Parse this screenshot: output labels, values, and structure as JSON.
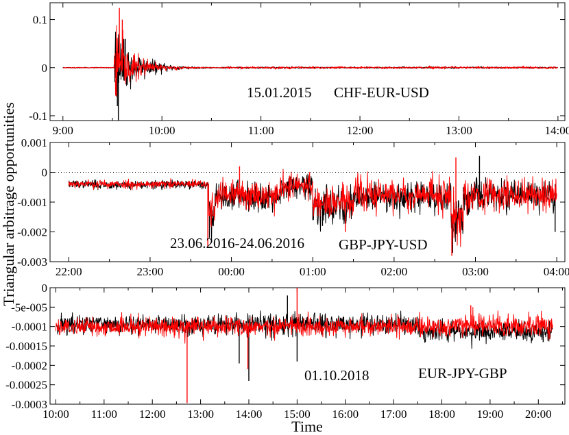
{
  "chart_data": [
    {
      "type": "line",
      "annotations": [
        "15.01.2015",
        "CHF-EUR-USD"
      ],
      "x_tick_labels": [
        "9:00",
        "10:00",
        "11:00",
        "12:00",
        "13:00",
        "14:00"
      ],
      "x_ticks_hours": [
        9,
        10,
        11,
        12,
        13,
        14
      ],
      "xlim_hours": [
        8.87,
        14.07
      ],
      "ylim": [
        -0.11,
        0.135
      ],
      "y_ticks": [
        -0.1,
        0,
        0.1
      ],
      "y_tick_labels": [
        "-0.1",
        "0",
        "0.1"
      ],
      "zero_line_dotted": false,
      "series": [
        {
          "color": "#000000",
          "seed": 11,
          "segments": [
            {
              "x0": 9.0,
              "x1": 9.52,
              "base": 0,
              "noise": 0.0004
            },
            {
              "x0": 9.52,
              "x1": 10.6,
              "base": 0,
              "noise": 0.0004,
              "burst_amp": 0.075,
              "burst_decay": 0.22,
              "burst_start": 9.52
            },
            {
              "x0": 10.6,
              "x1": 14.0,
              "base": 0,
              "noise": 0.0008
            }
          ],
          "spikes": [
            {
              "x": 9.56,
              "y": -0.11
            },
            {
              "x": 9.63,
              "y": 0.06
            },
            {
              "x": 9.55,
              "y": -0.08
            }
          ]
        },
        {
          "color": "#ff0000",
          "seed": 23,
          "segments": [
            {
              "x0": 9.0,
              "x1": 9.52,
              "base": 0,
              "noise": 0.0004
            },
            {
              "x0": 9.52,
              "x1": 10.6,
              "base": 0,
              "noise": 0.0004,
              "burst_amp": 0.07,
              "burst_decay": 0.2,
              "burst_start": 9.52
            },
            {
              "x0": 10.6,
              "x1": 14.0,
              "base": 0,
              "noise": 0.0012
            }
          ],
          "spikes": [
            {
              "x": 9.57,
              "y": 0.124
            },
            {
              "x": 9.6,
              "y": 0.1
            },
            {
              "x": 9.54,
              "y": -0.06
            }
          ]
        }
      ]
    },
    {
      "type": "line",
      "annotations": [
        "23.06.2016-24.06.2016",
        "GBP-JPY-USD"
      ],
      "x_tick_labels": [
        "22:00",
        "23:00",
        "00:00",
        "01:00",
        "02:00",
        "03:00",
        "04:00"
      ],
      "x_ticks_hours": [
        22,
        23,
        24,
        25,
        26,
        27,
        28
      ],
      "xlim_hours": [
        21.77,
        28.1
      ],
      "ylim": [
        -0.003,
        0.001
      ],
      "y_ticks": [
        -0.003,
        -0.002,
        -0.001,
        0,
        0.001
      ],
      "y_tick_labels": [
        "-0.003",
        "-0.002",
        "-0.001",
        "0",
        "0.001"
      ],
      "zero_line_dotted": true,
      "series": [
        {
          "color": "#000000",
          "seed": 37,
          "segments": [
            {
              "x0": 22.0,
              "x1": 22.3,
              "base": -0.0004,
              "noise": 6e-05
            },
            {
              "x0": 22.3,
              "x1": 23.72,
              "base": -0.00042,
              "noise": 7e-05
            },
            {
              "x0": 23.72,
              "x1": 23.8,
              "base": -0.0014,
              "noise": 0.0003
            },
            {
              "x0": 23.8,
              "x1": 24.6,
              "base": -0.0008,
              "noise": 0.00024
            },
            {
              "x0": 24.6,
              "x1": 25.0,
              "base": -0.0005,
              "noise": 0.0002
            },
            {
              "x0": 25.0,
              "x1": 25.5,
              "base": -0.0011,
              "noise": 0.0003
            },
            {
              "x0": 25.5,
              "x1": 26.7,
              "base": -0.0008,
              "noise": 0.00026
            },
            {
              "x0": 26.7,
              "x1": 26.85,
              "base": -0.0016,
              "noise": 0.0004
            },
            {
              "x0": 26.85,
              "x1": 28.0,
              "base": -0.0008,
              "noise": 0.00026
            }
          ],
          "spikes": [
            {
              "x": 23.73,
              "y": -0.0022
            },
            {
              "x": 25.12,
              "y": -0.0018
            },
            {
              "x": 26.72,
              "y": -0.0027
            },
            {
              "x": 27.05,
              "y": 0.00055
            },
            {
              "x": 27.98,
              "y": -0.002
            }
          ]
        },
        {
          "color": "#ff0000",
          "seed": 53,
          "segments": [
            {
              "x0": 22.0,
              "x1": 22.3,
              "base": -0.00038,
              "noise": 6e-05
            },
            {
              "x0": 22.3,
              "x1": 23.72,
              "base": -0.0004,
              "noise": 7e-05
            },
            {
              "x0": 23.72,
              "x1": 23.8,
              "base": -0.0013,
              "noise": 0.0003
            },
            {
              "x0": 23.8,
              "x1": 24.6,
              "base": -0.00075,
              "noise": 0.00024
            },
            {
              "x0": 24.6,
              "x1": 25.0,
              "base": -0.00045,
              "noise": 0.0002
            },
            {
              "x0": 25.0,
              "x1": 25.5,
              "base": -0.001,
              "noise": 0.0003
            },
            {
              "x0": 25.5,
              "x1": 26.7,
              "base": -0.00075,
              "noise": 0.00028
            },
            {
              "x0": 26.7,
              "x1": 26.85,
              "base": -0.0015,
              "noise": 0.0004
            },
            {
              "x0": 26.85,
              "x1": 28.0,
              "base": -0.00075,
              "noise": 0.00028
            }
          ],
          "spikes": [
            {
              "x": 23.71,
              "y": -0.0025
            },
            {
              "x": 24.1,
              "y": 0.0002
            },
            {
              "x": 25.4,
              "y": -0.002
            },
            {
              "x": 26.71,
              "y": -0.0028
            },
            {
              "x": 26.76,
              "y": 0.0005
            }
          ]
        }
      ]
    },
    {
      "type": "line",
      "annotations": [
        "01.10.2018",
        "EUR-JPY-GBP"
      ],
      "x_tick_labels": [
        "10:00",
        "11:00",
        "12:00",
        "13:00",
        "14:00",
        "15:00",
        "16:00",
        "17:00",
        "18:00",
        "19:00",
        "20:00"
      ],
      "x_ticks_hours": [
        10,
        11,
        12,
        13,
        14,
        15,
        16,
        17,
        18,
        19,
        20
      ],
      "xlim_hours": [
        9.88,
        20.55
      ],
      "ylim": [
        -0.0003,
        0.0
      ],
      "y_ticks": [
        -0.0003,
        -0.00025,
        -0.0002,
        -0.00015,
        -0.0001,
        -5e-05,
        0
      ],
      "y_tick_labels": [
        "-0.0003",
        "-0.00025",
        "-0.0002",
        "-0.00015",
        "-0.0001",
        "-5e-005",
        "0"
      ],
      "zero_line_dotted": false,
      "series": [
        {
          "color": "#000000",
          "seed": 71,
          "segments": [
            {
              "x0": 10.0,
              "x1": 17.5,
              "base": -9.5e-05,
              "noise": 1.3e-05
            },
            {
              "x0": 17.5,
              "x1": 20.3,
              "base": -0.000112,
              "noise": 1.4e-05
            }
          ],
          "spikes": [
            {
              "x": 14.0,
              "y": -0.00024
            },
            {
              "x": 14.8,
              "y": -2e-05
            },
            {
              "x": 15.0,
              "y": -0.00019
            },
            {
              "x": 13.8,
              "y": -0.000195
            },
            {
              "x": 20.1,
              "y": -0.00014
            }
          ]
        },
        {
          "color": "#ff0000",
          "seed": 89,
          "segments": [
            {
              "x0": 10.0,
              "x1": 17.5,
              "base": -0.0001,
              "noise": 1.2e-05
            },
            {
              "x0": 17.5,
              "x1": 20.3,
              "base": -9.8e-05,
              "noise": 1.4e-05
            }
          ],
          "spikes": [
            {
              "x": 12.72,
              "y": -0.000297
            },
            {
              "x": 13.98,
              "y": -0.00021
            },
            {
              "x": 15.0,
              "y": 0.0
            },
            {
              "x": 18.6,
              "y": -4.5e-05
            }
          ]
        }
      ]
    }
  ],
  "ylabel": "Triangular arbitrage opportunities",
  "xlabel": "Time"
}
